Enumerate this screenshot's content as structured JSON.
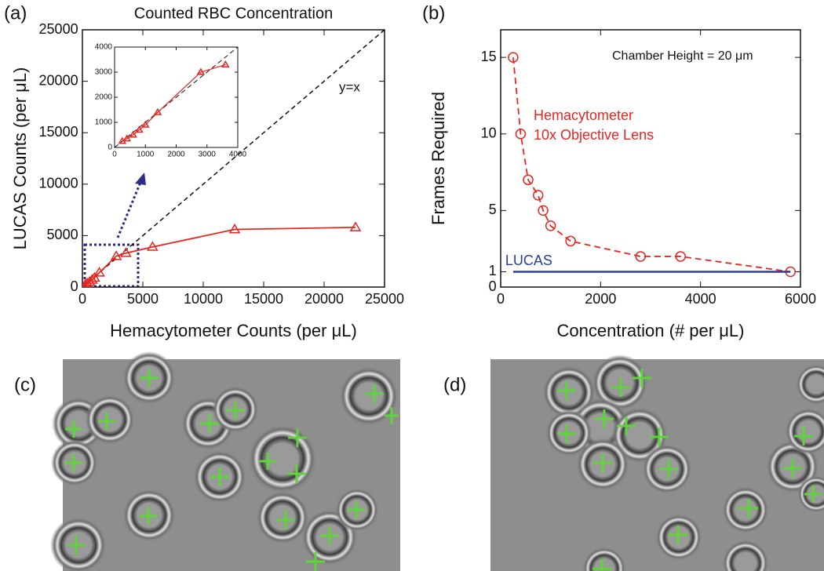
{
  "chart_data": [
    {
      "type": "line",
      "panel_label": "(a)",
      "title": "Counted RBC Concentration",
      "xlabel": "Hemacytometer Counts (per μL)",
      "ylabel": "LUCAS Counts (per μL)",
      "xlim": [
        0,
        25000
      ],
      "ylim": [
        0,
        25000
      ],
      "xticks": [
        0,
        5000,
        10000,
        15000,
        20000,
        25000
      ],
      "yticks": [
        0,
        5000,
        10000,
        15000,
        20000,
        25000
      ],
      "diagonal": true,
      "annotations": [
        "y=x"
      ],
      "series": [
        {
          "color": "#e8251f",
          "marker": "triangle",
          "dash": false,
          "x": [
            250,
            400,
            600,
            800,
            1000,
            1400,
            2800,
            3600,
            5800,
            12600,
            22600
          ],
          "values": [
            250,
            350,
            500,
            700,
            900,
            1400,
            3000,
            3300,
            3900,
            5600,
            5800
          ]
        }
      ]
    },
    {
      "type": "line",
      "xlim": [
        0,
        4000
      ],
      "ylim": [
        0,
        4000
      ],
      "xticks": [
        0,
        1000,
        2000,
        3000,
        4000
      ],
      "yticks": [
        0,
        1000,
        2000,
        3000,
        4000
      ],
      "diagonal": true,
      "annotations": [],
      "series": [
        {
          "color": "#e8251f",
          "marker": "triangle",
          "dash": false,
          "x": [
            250,
            400,
            600,
            800,
            1000,
            1400,
            2800,
            3600
          ],
          "values": [
            250,
            350,
            500,
            700,
            900,
            1400,
            3000,
            3300
          ]
        }
      ]
    },
    {
      "type": "line",
      "panel_label": "(b)",
      "xlabel": "Concentration (# per μL)",
      "ylabel": "Frames Required",
      "xlim": [
        0,
        6000
      ],
      "ylim": [
        0,
        16.8
      ],
      "xticks": [
        0,
        2000,
        4000,
        6000
      ],
      "yticks": [
        0,
        1,
        5,
        10,
        15
      ],
      "diagonal": false,
      "annotations": [
        "Chamber Height = 20 μm",
        "Hemacytometer",
        "10x Objective Lens"
      ],
      "series": [
        {
          "color": "#e8251f",
          "marker": "circle",
          "dash": true,
          "x": [
            250,
            400,
            550,
            750,
            850,
            1000,
            1400,
            2800,
            3600,
            5800
          ],
          "values": [
            15,
            10,
            7,
            6,
            5,
            4,
            3,
            2,
            2,
            1
          ]
        },
        {
          "name": "LUCAS",
          "color": "#2b3d9c",
          "marker": "none",
          "dash": false,
          "x": [
            250,
            5800
          ],
          "values": [
            1,
            1
          ]
        }
      ]
    }
  ],
  "panels": {
    "c": "(c)",
    "d": "(d)"
  }
}
